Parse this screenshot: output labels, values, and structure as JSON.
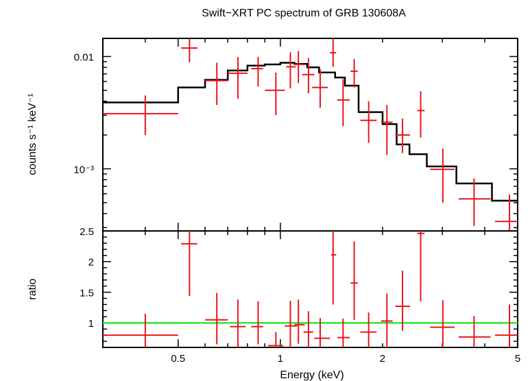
{
  "title": "Swift−XRT PC spectrum of GRB 130608A",
  "colors": {
    "data": "#e8141b",
    "model": "#000000",
    "ratio_line": "#2ee82e",
    "axes": "#000000"
  },
  "chart_data": [
    {
      "type": "scatter",
      "panel": "spectrum",
      "ylabel": "counts s⁻¹ keV⁻¹",
      "xscale": "log",
      "yscale": "log",
      "xlim": [
        0.3,
        5.0
      ],
      "ylim": [
        0.00028,
        0.0145
      ],
      "ytick_labels": [
        "0.01",
        "10⁻³"
      ],
      "ytick_values": [
        0.01,
        0.001
      ],
      "model_steps": [
        {
          "x0": 0.3,
          "x1": 0.5,
          "y": 0.0039
        },
        {
          "x0": 0.5,
          "x1": 0.6,
          "y": 0.0053
        },
        {
          "x0": 0.6,
          "x1": 0.7,
          "y": 0.0062
        },
        {
          "x0": 0.7,
          "x1": 0.8,
          "y": 0.0075
        },
        {
          "x0": 0.8,
          "x1": 0.9,
          "y": 0.0083
        },
        {
          "x0": 0.9,
          "x1": 1.0,
          "y": 0.0085
        },
        {
          "x0": 1.0,
          "x1": 1.1,
          "y": 0.0088
        },
        {
          "x0": 1.1,
          "x1": 1.2,
          "y": 0.0086
        },
        {
          "x0": 1.2,
          "x1": 1.3,
          "y": 0.008
        },
        {
          "x0": 1.3,
          "x1": 1.45,
          "y": 0.0072
        },
        {
          "x0": 1.45,
          "x1": 1.55,
          "y": 0.0065
        },
        {
          "x0": 1.55,
          "x1": 1.7,
          "y": 0.0055
        },
        {
          "x0": 1.7,
          "x1": 2.0,
          "y": 0.0032
        },
        {
          "x0": 2.0,
          "x1": 2.2,
          "y": 0.0025
        },
        {
          "x0": 2.2,
          "x1": 2.4,
          "y": 0.00165
        },
        {
          "x0": 2.4,
          "x1": 2.7,
          "y": 0.00135
        },
        {
          "x0": 2.7,
          "x1": 3.3,
          "y": 0.00105
        },
        {
          "x0": 3.3,
          "x1": 4.2,
          "y": 0.00074
        },
        {
          "x0": 4.2,
          "x1": 5.0,
          "y": 0.00052
        }
      ],
      "points": [
        {
          "x": 0.4,
          "xlo": 0.3,
          "xhi": 0.5,
          "y": 0.0031,
          "ylo": 0.002,
          "yhi": 0.0045
        },
        {
          "x": 0.54,
          "xlo": 0.51,
          "xhi": 0.57,
          "y": 0.0119,
          "ylo": 0.0089,
          "yhi": 0.015
        },
        {
          "x": 0.65,
          "xlo": 0.6,
          "xhi": 0.7,
          "y": 0.0061,
          "ylo": 0.0037,
          "yhi": 0.0088
        },
        {
          "x": 0.75,
          "xlo": 0.7,
          "xhi": 0.8,
          "y": 0.0071,
          "ylo": 0.0042,
          "yhi": 0.0099
        },
        {
          "x": 0.86,
          "xlo": 0.82,
          "xhi": 0.89,
          "y": 0.0078,
          "ylo": 0.0054,
          "yhi": 0.0099
        },
        {
          "x": 0.97,
          "xlo": 0.9,
          "xhi": 1.03,
          "y": 0.005,
          "ylo": 0.003,
          "yhi": 0.0072
        },
        {
          "x": 1.07,
          "xlo": 1.04,
          "xhi": 1.11,
          "y": 0.0081,
          "ylo": 0.0052,
          "yhi": 0.0109
        },
        {
          "x": 1.13,
          "xlo": 1.1,
          "xhi": 1.17,
          "y": 0.0085,
          "ylo": 0.0058,
          "yhi": 0.0112
        },
        {
          "x": 1.21,
          "xlo": 1.16,
          "xhi": 1.26,
          "y": 0.0069,
          "ylo": 0.0047,
          "yhi": 0.0097
        },
        {
          "x": 1.31,
          "xlo": 1.24,
          "xhi": 1.38,
          "y": 0.0053,
          "ylo": 0.0035,
          "yhi": 0.0077
        },
        {
          "x": 1.43,
          "xlo": 1.4,
          "xhi": 1.46,
          "y": 0.0108,
          "ylo": 0.0081,
          "yhi": 0.0145
        },
        {
          "x": 1.53,
          "xlo": 1.47,
          "xhi": 1.6,
          "y": 0.0041,
          "ylo": 0.0024,
          "yhi": 0.0063
        },
        {
          "x": 1.65,
          "xlo": 1.61,
          "xhi": 1.69,
          "y": 0.0074,
          "ylo": 0.0053,
          "yhi": 0.0095
        },
        {
          "x": 1.82,
          "xlo": 1.72,
          "xhi": 1.92,
          "y": 0.0027,
          "ylo": 0.0017,
          "yhi": 0.004
        },
        {
          "x": 2.06,
          "xlo": 1.98,
          "xhi": 2.14,
          "y": 0.0026,
          "ylo": 0.00133,
          "yhi": 0.0037
        },
        {
          "x": 2.29,
          "xlo": 2.18,
          "xhi": 2.41,
          "y": 0.002,
          "ylo": 0.00138,
          "yhi": 0.0028
        },
        {
          "x": 2.59,
          "xlo": 2.53,
          "xhi": 2.66,
          "y": 0.0033,
          "ylo": 0.0019,
          "yhi": 0.0049
        },
        {
          "x": 3.01,
          "xlo": 2.76,
          "xhi": 3.26,
          "y": 0.00099,
          "ylo": 0.0005,
          "yhi": 0.00152
        },
        {
          "x": 3.72,
          "xlo": 3.35,
          "xhi": 4.16,
          "y": 0.00054,
          "ylo": 0.00031,
          "yhi": 0.00082
        },
        {
          "x": 4.73,
          "xlo": 4.29,
          "xhi": 5.0,
          "y": 0.00034,
          "ylo": 0.00028,
          "yhi": 0.00059
        }
      ]
    },
    {
      "type": "scatter",
      "panel": "ratio",
      "xlabel": "Energy (keV)",
      "ylabel": "ratio",
      "xscale": "log",
      "xlim": [
        0.3,
        5.0
      ],
      "ylim": [
        0.6,
        2.5
      ],
      "xtick_labels": [
        "0.5",
        "1",
        "2",
        "5"
      ],
      "xtick_values": [
        0.5,
        1,
        2,
        5
      ],
      "ytick_labels": [
        "2.5",
        "2",
        "1.5",
        "1"
      ],
      "ytick_values": [
        2.5,
        2,
        1.5,
        1
      ],
      "reference_line": 1.0,
      "points": [
        {
          "x": 0.4,
          "xlo": 0.3,
          "xhi": 0.5,
          "y": 0.8,
          "ylo": 0.51,
          "yhi": 1.15
        },
        {
          "x": 0.54,
          "xlo": 0.51,
          "xhi": 0.57,
          "y": 2.29,
          "ylo": 1.44,
          "yhi": 2.5
        },
        {
          "x": 0.65,
          "xlo": 0.6,
          "xhi": 0.7,
          "y": 1.05,
          "ylo": 0.65,
          "yhi": 1.49
        },
        {
          "x": 0.75,
          "xlo": 0.71,
          "xhi": 0.79,
          "y": 0.94,
          "ylo": 0.56,
          "yhi": 1.38
        },
        {
          "x": 0.86,
          "xlo": 0.82,
          "xhi": 0.89,
          "y": 0.94,
          "ylo": 0.65,
          "yhi": 1.35
        },
        {
          "x": 0.97,
          "xlo": 0.92,
          "xhi": 1.02,
          "y": 0.63,
          "ylo": 0.5,
          "yhi": 0.85
        },
        {
          "x": 1.07,
          "xlo": 1.03,
          "xhi": 1.12,
          "y": 0.95,
          "ylo": 0.58,
          "yhi": 1.36
        },
        {
          "x": 1.13,
          "xlo": 1.1,
          "xhi": 1.18,
          "y": 0.97,
          "ylo": 0.66,
          "yhi": 1.38
        },
        {
          "x": 1.21,
          "xlo": 1.17,
          "xhi": 1.25,
          "y": 0.85,
          "ylo": 0.6,
          "yhi": 1.19
        },
        {
          "x": 1.31,
          "xlo": 1.26,
          "xhi": 1.4,
          "y": 0.75,
          "ylo": 0.5,
          "yhi": 1.08
        },
        {
          "x": 1.43,
          "xlo": 1.41,
          "xhi": 1.46,
          "y": 2.11,
          "ylo": 1.3,
          "yhi": 2.5
        },
        {
          "x": 1.53,
          "xlo": 1.47,
          "xhi": 1.6,
          "y": 0.76,
          "ylo": 0.45,
          "yhi": 1.07
        },
        {
          "x": 1.65,
          "xlo": 1.61,
          "xhi": 1.69,
          "y": 1.65,
          "ylo": 1.05,
          "yhi": 2.33
        },
        {
          "x": 1.82,
          "xlo": 1.72,
          "xhi": 1.92,
          "y": 0.85,
          "ylo": 0.53,
          "yhi": 1.17
        },
        {
          "x": 2.06,
          "xlo": 1.98,
          "xhi": 2.14,
          "y": 1.03,
          "ylo": 0.55,
          "yhi": 1.48
        },
        {
          "x": 2.29,
          "xlo": 2.18,
          "xhi": 2.41,
          "y": 1.27,
          "ylo": 0.87,
          "yhi": 1.85
        },
        {
          "x": 2.59,
          "xlo": 2.53,
          "xhi": 2.66,
          "y": 2.46,
          "ylo": 1.35,
          "yhi": 2.5
        },
        {
          "x": 3.01,
          "xlo": 2.76,
          "xhi": 3.26,
          "y": 0.93,
          "ylo": 0.48,
          "yhi": 1.37
        },
        {
          "x": 3.72,
          "xlo": 3.35,
          "xhi": 4.16,
          "y": 0.77,
          "ylo": 0.45,
          "yhi": 1.11
        },
        {
          "x": 4.73,
          "xlo": 4.29,
          "xhi": 5.0,
          "y": 0.8,
          "ylo": 0.5,
          "yhi": 1.3
        }
      ]
    }
  ]
}
